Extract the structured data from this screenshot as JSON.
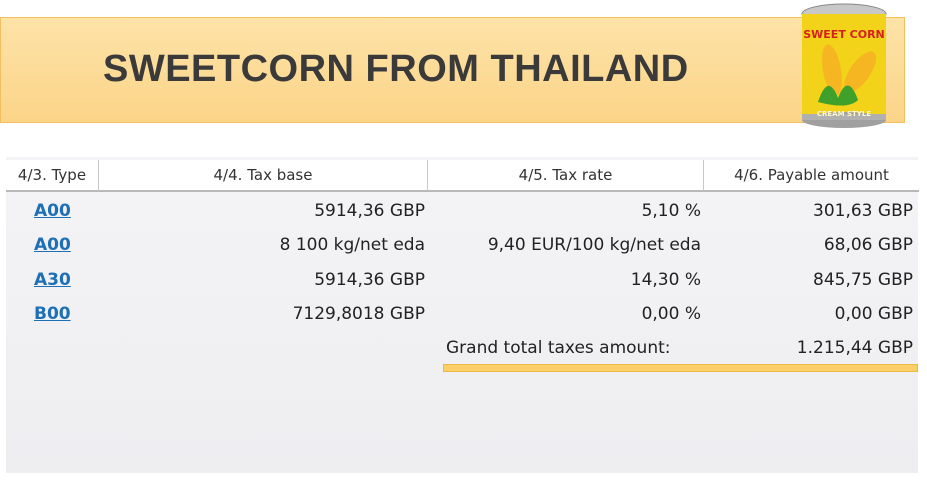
{
  "banner": {
    "title": "SWEETCORN FROM THAILAND",
    "logo_text_top": "SWEET CORN",
    "logo_text_bottom": "CREAM STYLE"
  },
  "table": {
    "headers": [
      "4/3. Type",
      "4/4. Tax base",
      "4/5. Tax rate",
      "4/6. Payable amount"
    ],
    "rows": [
      {
        "type": "A00",
        "base": "5914,36 GBP",
        "rate": "5,10 %",
        "amount": "301,63 GBP"
      },
      {
        "type": "A00",
        "base": "8 100 kg/net eda",
        "rate": "9,40 EUR/100 kg/net eda",
        "amount": "68,06 GBP"
      },
      {
        "type": "A30",
        "base": "5914,36 GBP",
        "rate": "14,30 %",
        "amount": "845,75 GBP"
      },
      {
        "type": "B00",
        "base": "7129,8018 GBP",
        "rate": "0,00 %",
        "amount": "0,00 GBP"
      }
    ],
    "total_label": "Grand total taxes amount:",
    "total_value": "1.215,44 GBP"
  },
  "colors": {
    "banner": "#fbd488",
    "link": "#1f6fb5",
    "total_bar": "#fbcf68"
  }
}
